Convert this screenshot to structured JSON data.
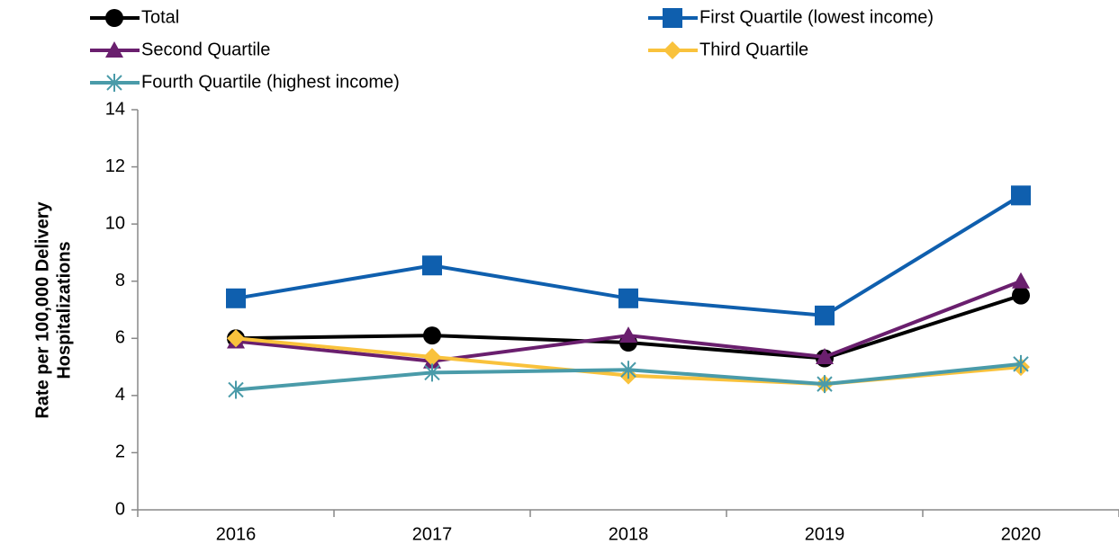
{
  "chart_data": {
    "type": "line",
    "y_label": [
      "Rate per 100,000 Delivery",
      "Hospitalizations"
    ],
    "categories": [
      "2016",
      "2017",
      "2018",
      "2019",
      "2020"
    ],
    "series": [
      {
        "name": "Total",
        "color": "#000000",
        "marker": "circle",
        "values": [
          6.0,
          6.1,
          5.85,
          5.3,
          7.5
        ]
      },
      {
        "name": "First Quartile (lowest income)",
        "color": "#0f5fae",
        "marker": "square",
        "values": [
          7.4,
          8.55,
          7.4,
          6.8,
          11.0
        ]
      },
      {
        "name": "Second Quartile",
        "color": "#6a1f6e",
        "marker": "triangle",
        "values": [
          5.9,
          5.2,
          6.1,
          5.35,
          8.0
        ]
      },
      {
        "name": "Third Quartile",
        "color": "#f9c23c",
        "marker": "diamond",
        "values": [
          6.0,
          5.35,
          4.7,
          4.4,
          5.0
        ]
      },
      {
        "name": "Fourth Quartile (highest income)",
        "color": "#4a9ba9",
        "marker": "asterisk",
        "values": [
          4.2,
          4.8,
          4.9,
          4.4,
          5.1
        ]
      }
    ],
    "ylim": [
      0,
      14
    ],
    "yticks": [
      0,
      2,
      4,
      6,
      8,
      10,
      12,
      14
    ],
    "grid": false
  }
}
